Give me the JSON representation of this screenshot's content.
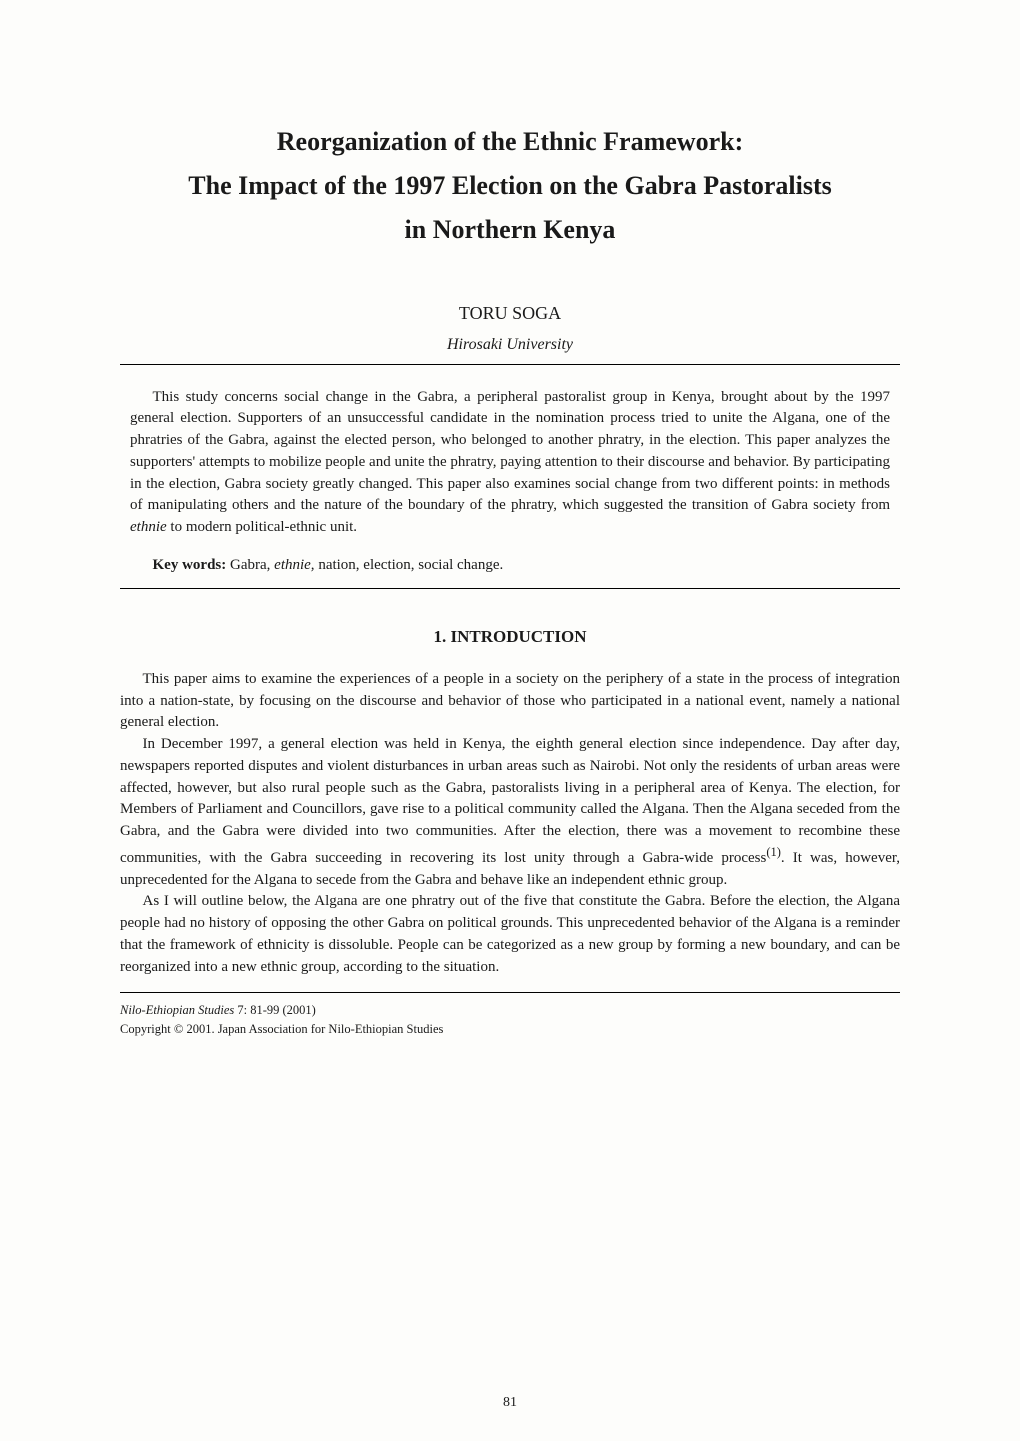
{
  "title_line1": "Reorganization of the Ethnic Framework:",
  "title_line2": "The Impact of the 1997 Election on the Gabra Pastoralists",
  "title_line3": "in Northern Kenya",
  "author": "TORU SOGA",
  "affiliation": "Hirosaki University",
  "abstract": {
    "para1": "This study concerns social change in the Gabra, a peripheral pastoralist group in Kenya, brought about by the 1997 general election. Supporters of an unsuccessful candidate in the nomination process tried to unite the Algana, one of the phratries of the Gabra, against the elected person, who belonged to another phratry, in the election. This paper analyzes the supporters' attempts to mobilize people and unite the phratry, paying attention to their discourse and behavior. By participating in the election, Gabra society greatly changed. This paper also examines social change from two different points: in methods of manipulating others and the nature of the boundary of the phratry, which suggested the transition of Gabra society from ",
    "para1_italic": "ethnie",
    "para1_end": " to modern political-ethnic unit."
  },
  "keywords": {
    "label": "Key words:",
    "text": " Gabra, ",
    "italic": "ethnie,",
    "text_end": " nation, election, social change."
  },
  "section1_heading": "1.  INTRODUCTION",
  "body": {
    "para1": "This paper aims to examine the experiences of a people in a society on the periphery of a state in the process of integration into a nation-state, by focusing on the discourse and behavior of those who participated in a national event, namely a national general election.",
    "para2_a": "In December 1997, a general election was held in Kenya, the eighth general election since independence. Day after day, newspapers reported disputes and violent disturbances in urban areas such as Nairobi. Not only the residents of urban areas were affected, however, but also rural people such as the Gabra, pastoralists living in a peripheral area of Kenya. The election, for Members of Parliament and Councillors, gave rise to a political community called the Algana. Then the Algana seceded from the Gabra, and the Gabra were divided into two communities. After the election, there was a movement to recombine these communities, with the Gabra succeeding in recovering its lost unity through a Gabra-wide process",
    "para2_sup": "(1)",
    "para2_b": ". It was, however, unprecedented for the Algana to secede from the Gabra and behave like an independent ethnic group.",
    "para3": "As I will outline below, the Algana are one phratry out of the five that constitute the Gabra. Before the election, the Algana people had no history of opposing the other Gabra on political grounds. This unprecedented behavior of the Algana is a reminder that the framework of ethnicity is dissoluble. People can be categorized as a new group by forming a new boundary, and can be reorganized into a new ethnic group, according to the situation."
  },
  "footer": {
    "journal": "Nilo-Ethiopian Studies",
    "citation": " 7: 81-99 (2001)",
    "copyright": "Copyright © 2001. Japan Association for Nilo-Ethiopian Studies"
  },
  "page_number": "81"
}
